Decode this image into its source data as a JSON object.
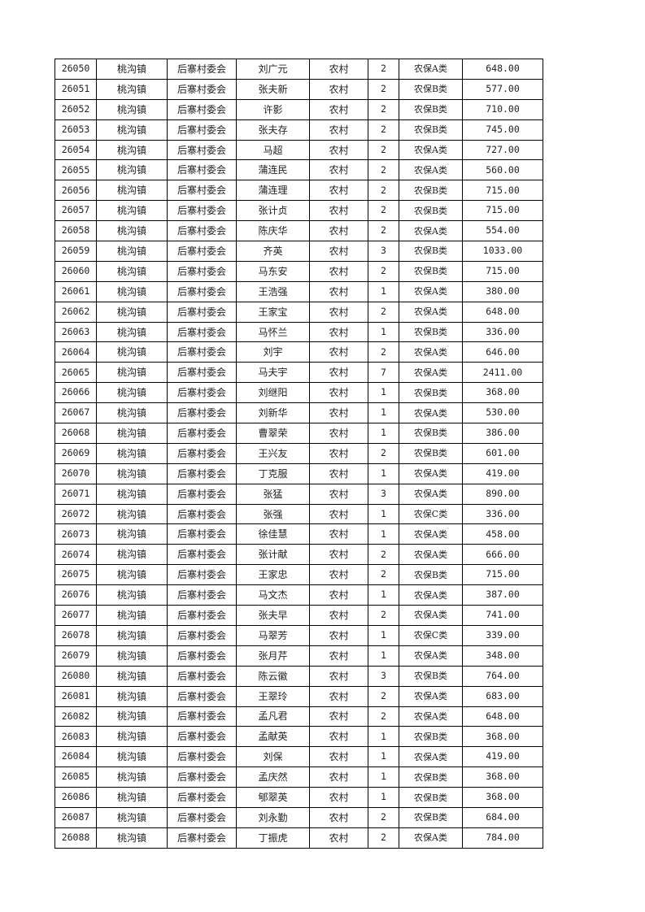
{
  "table": {
    "rows": [
      [
        "26050",
        "桃沟镇",
        "后寨村委会",
        "刘广元",
        "农村",
        "2",
        "农保A类",
        "648.00"
      ],
      [
        "26051",
        "桃沟镇",
        "后寨村委会",
        "张夫新",
        "农村",
        "2",
        "农保B类",
        "577.00"
      ],
      [
        "26052",
        "桃沟镇",
        "后寨村委会",
        "许影",
        "农村",
        "2",
        "农保B类",
        "710.00"
      ],
      [
        "26053",
        "桃沟镇",
        "后寨村委会",
        "张夫存",
        "农村",
        "2",
        "农保B类",
        "745.00"
      ],
      [
        "26054",
        "桃沟镇",
        "后寨村委会",
        "马超",
        "农村",
        "2",
        "农保A类",
        "727.00"
      ],
      [
        "26055",
        "桃沟镇",
        "后寨村委会",
        "蒲连民",
        "农村",
        "2",
        "农保A类",
        "560.00"
      ],
      [
        "26056",
        "桃沟镇",
        "后寨村委会",
        "蒲连理",
        "农村",
        "2",
        "农保B类",
        "715.00"
      ],
      [
        "26057",
        "桃沟镇",
        "后寨村委会",
        "张计贞",
        "农村",
        "2",
        "农保B类",
        "715.00"
      ],
      [
        "26058",
        "桃沟镇",
        "后寨村委会",
        "陈庆华",
        "农村",
        "2",
        "农保A类",
        "554.00"
      ],
      [
        "26059",
        "桃沟镇",
        "后寨村委会",
        "齐英",
        "农村",
        "3",
        "农保B类",
        "1033.00"
      ],
      [
        "26060",
        "桃沟镇",
        "后寨村委会",
        "马东安",
        "农村",
        "2",
        "农保B类",
        "715.00"
      ],
      [
        "26061",
        "桃沟镇",
        "后寨村委会",
        "王浩强",
        "农村",
        "1",
        "农保A类",
        "380.00"
      ],
      [
        "26062",
        "桃沟镇",
        "后寨村委会",
        "王家宝",
        "农村",
        "2",
        "农保A类",
        "648.00"
      ],
      [
        "26063",
        "桃沟镇",
        "后寨村委会",
        "马怀兰",
        "农村",
        "1",
        "农保B类",
        "336.00"
      ],
      [
        "26064",
        "桃沟镇",
        "后寨村委会",
        "刘宇",
        "农村",
        "2",
        "农保A类",
        "646.00"
      ],
      [
        "26065",
        "桃沟镇",
        "后寨村委会",
        "马夫宇",
        "农村",
        "7",
        "农保A类",
        "2411.00"
      ],
      [
        "26066",
        "桃沟镇",
        "后寨村委会",
        "刘继阳",
        "农村",
        "1",
        "农保B类",
        "368.00"
      ],
      [
        "26067",
        "桃沟镇",
        "后寨村委会",
        "刘新华",
        "农村",
        "1",
        "农保A类",
        "530.00"
      ],
      [
        "26068",
        "桃沟镇",
        "后寨村委会",
        "曹翠荣",
        "农村",
        "1",
        "农保B类",
        "386.00"
      ],
      [
        "26069",
        "桃沟镇",
        "后寨村委会",
        "王兴友",
        "农村",
        "2",
        "农保B类",
        "601.00"
      ],
      [
        "26070",
        "桃沟镇",
        "后寨村委会",
        "丁克服",
        "农村",
        "1",
        "农保A类",
        "419.00"
      ],
      [
        "26071",
        "桃沟镇",
        "后寨村委会",
        "张猛",
        "农村",
        "3",
        "农保A类",
        "890.00"
      ],
      [
        "26072",
        "桃沟镇",
        "后寨村委会",
        "张强",
        "农村",
        "1",
        "农保C类",
        "336.00"
      ],
      [
        "26073",
        "桃沟镇",
        "后寨村委会",
        "徐佳慧",
        "农村",
        "1",
        "农保A类",
        "458.00"
      ],
      [
        "26074",
        "桃沟镇",
        "后寨村委会",
        "张计献",
        "农村",
        "2",
        "农保A类",
        "666.00"
      ],
      [
        "26075",
        "桃沟镇",
        "后寨村委会",
        "王家忠",
        "农村",
        "2",
        "农保B类",
        "715.00"
      ],
      [
        "26076",
        "桃沟镇",
        "后寨村委会",
        "马文杰",
        "农村",
        "1",
        "农保A类",
        "387.00"
      ],
      [
        "26077",
        "桃沟镇",
        "后寨村委会",
        "张夫早",
        "农村",
        "2",
        "农保A类",
        "741.00"
      ],
      [
        "26078",
        "桃沟镇",
        "后寨村委会",
        "马翠芳",
        "农村",
        "1",
        "农保C类",
        "339.00"
      ],
      [
        "26079",
        "桃沟镇",
        "后寨村委会",
        "张月芹",
        "农村",
        "1",
        "农保A类",
        "348.00"
      ],
      [
        "26080",
        "桃沟镇",
        "后寨村委会",
        "陈云徽",
        "农村",
        "3",
        "农保B类",
        "764.00"
      ],
      [
        "26081",
        "桃沟镇",
        "后寨村委会",
        "王翠玲",
        "农村",
        "2",
        "农保A类",
        "683.00"
      ],
      [
        "26082",
        "桃沟镇",
        "后寨村委会",
        "孟凡君",
        "农村",
        "2",
        "农保A类",
        "648.00"
      ],
      [
        "26083",
        "桃沟镇",
        "后寨村委会",
        "孟献英",
        "农村",
        "1",
        "农保B类",
        "368.00"
      ],
      [
        "26084",
        "桃沟镇",
        "后寨村委会",
        "刘保",
        "农村",
        "1",
        "农保A类",
        "419.00"
      ],
      [
        "26085",
        "桃沟镇",
        "后寨村委会",
        "孟庆然",
        "农村",
        "1",
        "农保B类",
        "368.00"
      ],
      [
        "26086",
        "桃沟镇",
        "后寨村委会",
        "郇翠英",
        "农村",
        "1",
        "农保B类",
        "368.00"
      ],
      [
        "26087",
        "桃沟镇",
        "后寨村委会",
        "刘永勤",
        "农村",
        "2",
        "农保B类",
        "684.00"
      ],
      [
        "26088",
        "桃沟镇",
        "后寨村委会",
        "丁振虎",
        "农村",
        "2",
        "农保A类",
        "784.00"
      ]
    ]
  }
}
